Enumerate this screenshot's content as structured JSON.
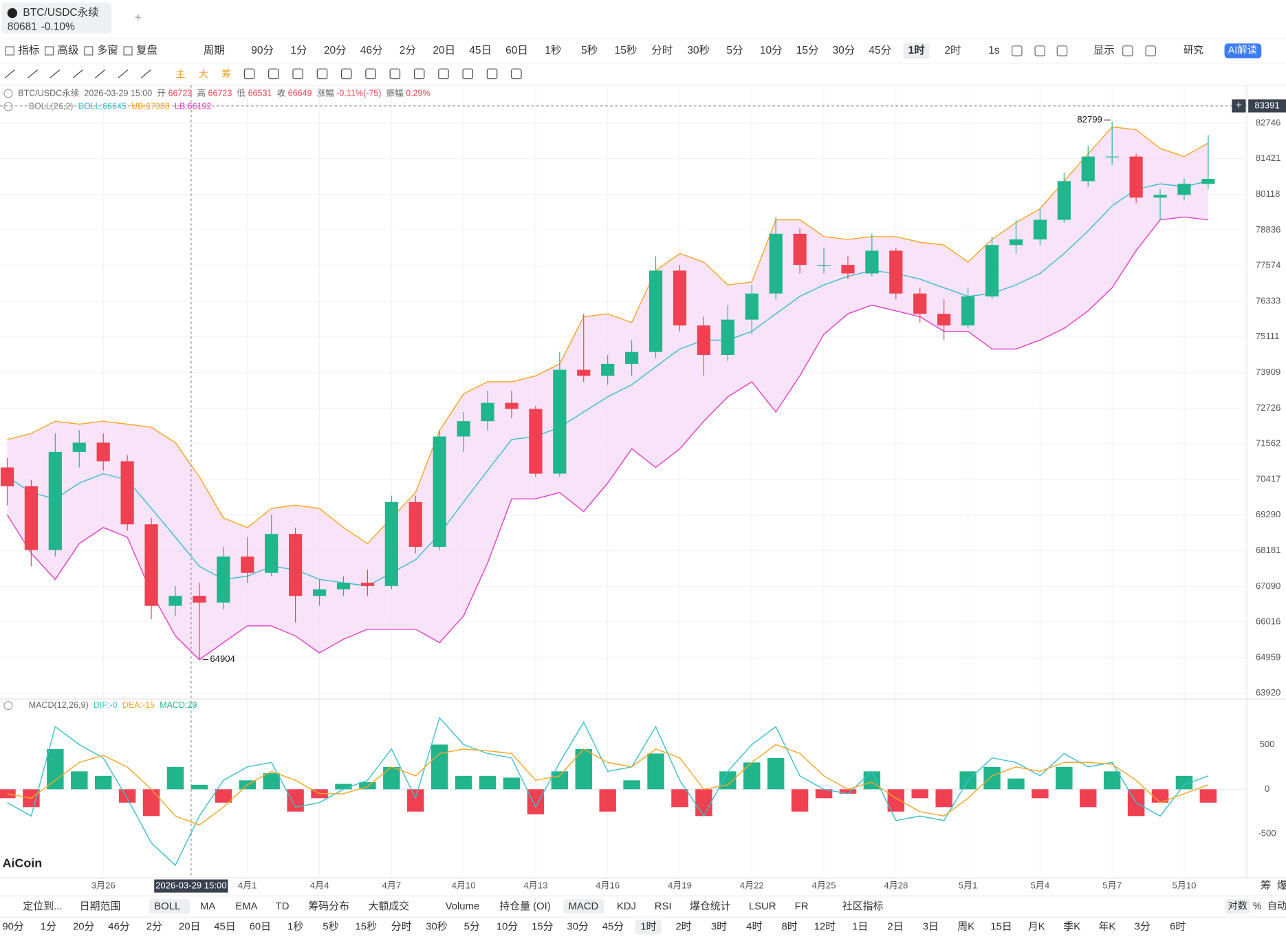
{
  "tab": {
    "symbol": "BTC/USDC永续",
    "price": "80681",
    "change": "-0.10%"
  },
  "toolbar": {
    "tools": [
      "指标",
      "高级",
      "多窗",
      "复盘"
    ],
    "period_menu": "周期",
    "periods": [
      "90分",
      "1分",
      "20分",
      "46分",
      "2分",
      "20日",
      "45日",
      "60日",
      "1秒",
      "5秒",
      "15秒",
      "分时",
      "30秒",
      "5分",
      "10分",
      "15分",
      "30分",
      "45分",
      "1时",
      "2时"
    ],
    "selected": 18,
    "right": "1s",
    "display": "显示",
    "research": "研究",
    "ai": "AI解读"
  },
  "draw_toolbar": [
    "主",
    "大",
    "筹"
  ],
  "chart_data": [
    {
      "type": "candlestick",
      "log_scale": true,
      "grid": true,
      "up_color": "#21b58c",
      "down_color": "#ef4152",
      "legend": {
        "symbol": "BTC/USDC永续",
        "time": "2026-03-29 15:00",
        "items": [
          {
            "label": "开",
            "value": "66723"
          },
          {
            "label": "高",
            "value": "66723"
          },
          {
            "label": "低",
            "value": "66531"
          },
          {
            "label": "收",
            "value": "66649"
          },
          {
            "label": "涨幅",
            "value": "-0.11%(-75)"
          },
          {
            "label": "振幅",
            "value": "0.29%"
          }
        ]
      },
      "indicator": {
        "name": "BOLL(26,2)",
        "labels": [
          "BOLL:66645",
          "UB:67088",
          "LB:66192"
        ]
      },
      "crosshair_price": 83391,
      "ylim": [
        63754,
        84047
      ],
      "yticks": [
        82746,
        81421,
        80118,
        78836,
        77574,
        76333,
        75111,
        73909,
        72726,
        71562,
        70417,
        69290,
        68181,
        67090,
        66016,
        64959,
        63920
      ],
      "xlim": [
        -0.3,
        51.6
      ],
      "xticks": [
        {
          "value": 4,
          "label": "3月26"
        },
        {
          "value": 10,
          "label": "4月1"
        },
        {
          "value": 13,
          "label": "4月4"
        },
        {
          "value": 16,
          "label": "4月7"
        },
        {
          "value": 19,
          "label": "4月10"
        },
        {
          "value": 22,
          "label": "4月13"
        },
        {
          "value": 25,
          "label": "4月16"
        },
        {
          "value": 28,
          "label": "4月19"
        },
        {
          "value": 31,
          "label": "4月22"
        },
        {
          "value": 34,
          "label": "4月25"
        },
        {
          "value": 37,
          "label": "4月28"
        },
        {
          "value": 40,
          "label": "5月1"
        },
        {
          "value": 43,
          "label": "5月4"
        },
        {
          "value": 46,
          "label": "5月7"
        },
        {
          "value": 49,
          "label": "5月10"
        }
      ],
      "x": [
        0,
        1,
        2,
        3,
        4,
        5,
        6,
        7,
        8,
        9,
        10,
        11,
        12,
        13,
        14,
        15,
        16,
        17,
        18,
        19,
        20,
        21,
        22,
        23,
        24,
        25,
        26,
        27,
        28,
        29,
        30,
        31,
        32,
        33,
        34,
        35,
        36,
        37,
        38,
        39,
        40,
        41,
        42,
        43,
        44,
        45,
        46,
        47,
        48,
        49,
        50
      ],
      "candles": [
        [
          70800,
          71100,
          69600,
          70200
        ],
        [
          70200,
          70400,
          67700,
          68200
        ],
        [
          68200,
          71900,
          68000,
          71300
        ],
        [
          71300,
          72000,
          70800,
          71600
        ],
        [
          71600,
          71900,
          70700,
          71000
        ],
        [
          71000,
          71200,
          68800,
          69000
        ],
        [
          69000,
          69200,
          66100,
          66500
        ],
        [
          66500,
          67100,
          66200,
          66800
        ],
        [
          66800,
          67200,
          64904,
          66600
        ],
        [
          66600,
          68300,
          66400,
          68000
        ],
        [
          68000,
          68600,
          67200,
          67500
        ],
        [
          67500,
          69300,
          67400,
          68700
        ],
        [
          68700,
          68900,
          66000,
          66800
        ],
        [
          66800,
          67300,
          66500,
          67000
        ],
        [
          67000,
          67400,
          66800,
          67200
        ],
        [
          67200,
          67600,
          66800,
          67100
        ],
        [
          67100,
          69900,
          67000,
          69700
        ],
        [
          69700,
          69900,
          68100,
          68300
        ],
        [
          68300,
          72000,
          68200,
          71800
        ],
        [
          71800,
          72600,
          71300,
          72300
        ],
        [
          72300,
          73300,
          72000,
          72900
        ],
        [
          72900,
          73300,
          72400,
          72700
        ],
        [
          72700,
          72800,
          70500,
          70600
        ],
        [
          70600,
          74600,
          70500,
          74000
        ],
        [
          74000,
          75900,
          73600,
          73800
        ],
        [
          73800,
          74500,
          73500,
          74200
        ],
        [
          74200,
          75000,
          73800,
          74600
        ],
        [
          74600,
          77900,
          74400,
          77400
        ],
        [
          77400,
          77600,
          75300,
          75500
        ],
        [
          75500,
          75800,
          73800,
          74500
        ],
        [
          74500,
          76200,
          74300,
          75700
        ],
        [
          75700,
          76900,
          75200,
          76600
        ],
        [
          76600,
          79300,
          76400,
          78700
        ],
        [
          78700,
          78900,
          77300,
          77600
        ],
        [
          77600,
          78200,
          77300,
          77600
        ],
        [
          77600,
          77900,
          77100,
          77300
        ],
        [
          77300,
          78700,
          77200,
          78100
        ],
        [
          78100,
          78200,
          76400,
          76600
        ],
        [
          76600,
          76800,
          75600,
          75900
        ],
        [
          75900,
          76400,
          75000,
          75500
        ],
        [
          75500,
          76800,
          75400,
          76500
        ],
        [
          76500,
          78600,
          76400,
          78300
        ],
        [
          78300,
          79200,
          78000,
          78500
        ],
        [
          78500,
          79600,
          78300,
          79200
        ],
        [
          79200,
          80900,
          79100,
          80600
        ],
        [
          80600,
          81900,
          80400,
          81500
        ],
        [
          81500,
          82799,
          81200,
          81500
        ],
        [
          81500,
          81600,
          79800,
          80000
        ],
        [
          80000,
          80300,
          79200,
          80100
        ],
        [
          80100,
          80700,
          79900,
          80500
        ],
        [
          80500,
          82300,
          80300,
          80681
        ]
      ],
      "boll": {
        "mid_color": "#3bbfcf",
        "upper_color": "#f5a623",
        "lower_color": "#e040c8",
        "fill": "#f6dcf6",
        "mid": [
          70500,
          70000,
          69800,
          70300,
          70600,
          70400,
          69500,
          68600,
          67700,
          67300,
          67400,
          67700,
          67600,
          67300,
          67200,
          67100,
          67500,
          67900,
          68700,
          69700,
          70700,
          71700,
          71800,
          72100,
          72600,
          73100,
          73500,
          74100,
          74700,
          75000,
          75000,
          75300,
          75900,
          76500,
          76900,
          77200,
          77400,
          77300,
          77100,
          76800,
          76500,
          76600,
          76900,
          77300,
          78000,
          78800,
          79700,
          80300,
          80500,
          80400,
          80600
        ],
        "upper": [
          71700,
          71900,
          72300,
          72200,
          72300,
          72200,
          72100,
          71600,
          70500,
          69200,
          68900,
          69500,
          69600,
          69500,
          68900,
          68400,
          69200,
          70000,
          72000,
          73200,
          73600,
          73600,
          73800,
          74200,
          75800,
          75900,
          75600,
          77400,
          78000,
          77700,
          76900,
          77000,
          79200,
          79200,
          78600,
          78500,
          78600,
          78600,
          78400,
          78300,
          77700,
          78500,
          79100,
          79600,
          80600,
          81600,
          82600,
          82500,
          81800,
          81500,
          82000
        ],
        "lower": [
          69300,
          68100,
          67300,
          68400,
          68900,
          68600,
          66900,
          65600,
          64900,
          65400,
          65900,
          65900,
          65600,
          65100,
          65500,
          65800,
          65800,
          65800,
          65400,
          66200,
          67800,
          69800,
          69800,
          70000,
          69400,
          70300,
          71400,
          70800,
          71400,
          72300,
          73100,
          73600,
          72600,
          73800,
          75200,
          75900,
          76200,
          76000,
          75800,
          75300,
          75300,
          74700,
          74700,
          75000,
          75400,
          76000,
          76800,
          78100,
          79200,
          79300,
          79200
        ]
      },
      "high_marker": 46,
      "low_marker": 8
    },
    {
      "type": "macd",
      "indicator": "MACD(12,26,9)",
      "labels": [
        "DIF:-0",
        "DEA:-15",
        "MACD:29"
      ],
      "ylim": [
        -973,
        845
      ],
      "yticks": [
        500,
        0,
        -500
      ],
      "dif_color": "#3bbfcf",
      "dea_color": "#f5a623",
      "pos_color": "#21b58c",
      "neg_color": "#ef4152",
      "hist": [
        -100,
        -200,
        450,
        200,
        150,
        -150,
        -300,
        250,
        50,
        -150,
        100,
        180,
        -250,
        -100,
        60,
        80,
        250,
        -250,
        500,
        150,
        150,
        130,
        -280,
        200,
        450,
        -250,
        100,
        400,
        -200,
        -300,
        200,
        300,
        350,
        -250,
        -100,
        -50,
        200,
        -250,
        -100,
        -200,
        200,
        250,
        120,
        -100,
        250,
        -200,
        200,
        -300,
        -150,
        150,
        -150
      ],
      "dif": [
        -150,
        -300,
        700,
        500,
        350,
        -100,
        -600,
        -850,
        -300,
        100,
        250,
        300,
        -200,
        -150,
        0,
        100,
        450,
        -100,
        800,
        500,
        400,
        350,
        -200,
        300,
        750,
        200,
        250,
        700,
        100,
        -300,
        200,
        500,
        700,
        150,
        0,
        -50,
        200,
        -350,
        -300,
        -350,
        100,
        350,
        300,
        150,
        400,
        250,
        300,
        -150,
        -300,
        50,
        150
      ],
      "dea": [
        -50,
        -100,
        100,
        300,
        380,
        250,
        0,
        -300,
        -400,
        -200,
        50,
        200,
        100,
        -50,
        -50,
        30,
        250,
        150,
        400,
        450,
        430,
        400,
        100,
        150,
        450,
        300,
        250,
        450,
        350,
        0,
        50,
        300,
        500,
        400,
        150,
        0,
        80,
        -100,
        -250,
        -300,
        -100,
        150,
        250,
        200,
        300,
        300,
        280,
        100,
        -150,
        -50,
        50
      ]
    }
  ],
  "logo": "AiCoin",
  "side": [
    "筹",
    "爆"
  ],
  "bottom": {
    "tabs": [
      "定位到...",
      "日期范围",
      "BOLL",
      "MA",
      "EMA",
      "TD",
      "筹码分布",
      "大额成交",
      "Volume",
      "持仓量 (OI)",
      "MACD",
      "KDJ",
      "RSI",
      "爆仓统计",
      "LSUR",
      "FR",
      "社区指标"
    ],
    "selected_tabs": [
      2,
      10
    ],
    "periods": [
      "90分",
      "1分",
      "20分",
      "46分",
      "2分",
      "20日",
      "45日",
      "60日",
      "1秒",
      "5秒",
      "15秒",
      "分时",
      "30秒",
      "5分",
      "10分",
      "15分",
      "30分",
      "45分",
      "1时",
      "2时",
      "3时",
      "4时",
      "8时",
      "12时",
      "1日",
      "2日",
      "3日",
      "周K",
      "15日",
      "月K",
      "季K",
      "年K",
      "3分",
      "6时"
    ],
    "selected_period": 18,
    "log": "对数",
    "percent": "%",
    "auto": "自动"
  }
}
